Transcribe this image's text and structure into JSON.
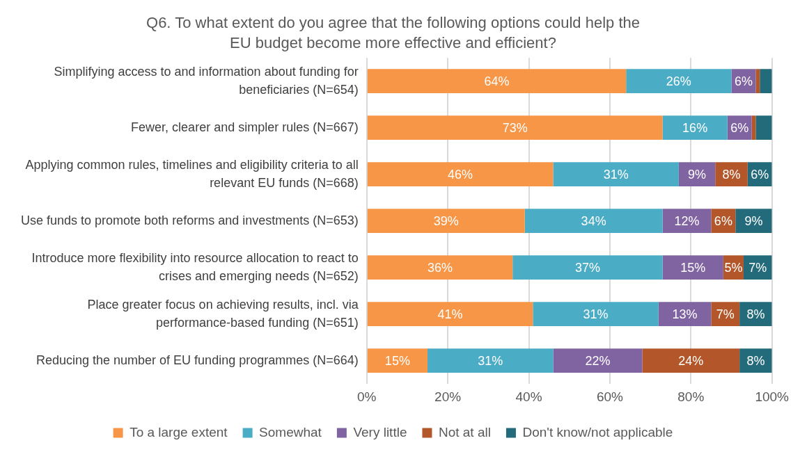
{
  "chart_data": {
    "type": "bar",
    "orientation": "horizontal",
    "stacked": true,
    "title": "Q6. To what extent do you agree that the following options could help the EU budget become more effective and efficient?",
    "categories": [
      "Simplifying access to and information about funding for beneficiaries (N=654)",
      "Fewer, clearer and simpler rules (N=667)",
      "Applying common rules, timelines and eligibility criteria to all relevant EU funds (N=668)",
      "Use funds to promote both reforms and investments (N=653)",
      "Introduce more flexibility into resource allocation to react to crises and emerging needs (N=652)",
      "Place greater focus on achieving results, incl. via performance-based funding (N=651)",
      "Reducing the number of EU funding programmes (N=664)"
    ],
    "series": [
      {
        "name": "To a large extent",
        "color": "#f79646",
        "values": [
          64,
          73,
          46,
          39,
          36,
          41,
          15
        ],
        "value_labels": [
          "64%",
          "73%",
          "46%",
          "39%",
          "36%",
          "41%",
          "15%"
        ]
      },
      {
        "name": "Somewhat",
        "color": "#4bacc6",
        "values": [
          26,
          16,
          31,
          34,
          37,
          31,
          31
        ],
        "value_labels": [
          "26%",
          "16%",
          "31%",
          "34%",
          "37%",
          "31%",
          "31%"
        ]
      },
      {
        "name": "Very little",
        "color": "#8064a2",
        "values": [
          6,
          6,
          9,
          12,
          15,
          13,
          22
        ],
        "value_labels": [
          "6%",
          "6%",
          "9%",
          "12%",
          "15%",
          "13%",
          "22%"
        ]
      },
      {
        "name": "Not at all",
        "color": "#b3572a",
        "values": [
          1,
          1,
          8,
          6,
          5,
          7,
          24
        ],
        "value_labels": [
          null,
          null,
          "8%",
          "6%",
          "5%",
          "7%",
          "24%"
        ]
      },
      {
        "name": "Don't know/not applicable",
        "color": "#236b7a",
        "values": [
          3,
          4,
          6,
          9,
          7,
          8,
          8
        ],
        "value_labels": [
          null,
          null,
          "6%",
          "9%",
          "7%",
          "8%",
          "8%"
        ]
      }
    ],
    "xlim": [
      0,
      100
    ],
    "xticks": [
      {
        "value": 0,
        "label": "0%"
      },
      {
        "value": 20,
        "label": "20%"
      },
      {
        "value": 40,
        "label": "40%"
      },
      {
        "value": 60,
        "label": "60%"
      },
      {
        "value": 80,
        "label": "80%"
      },
      {
        "value": 100,
        "label": "100%"
      }
    ],
    "grid": "x",
    "legend": "bottom"
  }
}
